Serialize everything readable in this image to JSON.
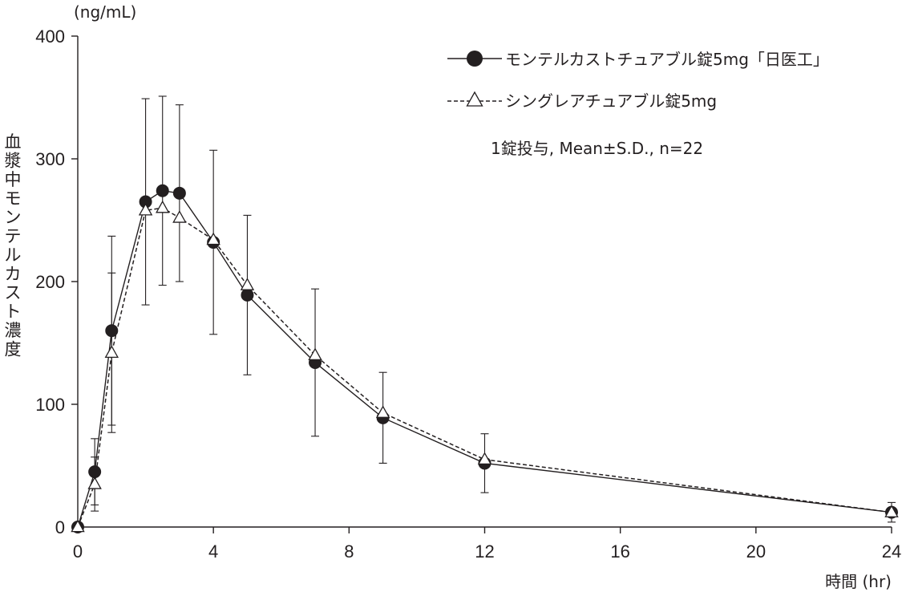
{
  "chart_data": {
    "type": "line",
    "y_unit": "(ng/mL)",
    "ylabel": "血漿中モンテルカスト濃度",
    "xlabel": "時間 (hr)",
    "xlim": [
      0,
      24
    ],
    "ylim": [
      0,
      400
    ],
    "x_ticks": [
      0,
      4,
      8,
      12,
      16,
      20,
      24
    ],
    "y_ticks": [
      0,
      100,
      200,
      300,
      400
    ],
    "annotation": "1錠投与, Mean±S.D., n=22",
    "legend_position": "top-right",
    "grid": false,
    "series": [
      {
        "name": "モンテルカストチュアブル錠5mg「日医工」",
        "marker": "filled-circle",
        "line_style": "solid",
        "x": [
          0,
          0.5,
          1,
          2,
          2.5,
          3,
          4,
          5,
          7,
          9,
          12,
          24
        ],
        "y": [
          0,
          45,
          160,
          265,
          274,
          272,
          232,
          189,
          134,
          89,
          52,
          12
        ],
        "error": [
          0,
          27,
          77,
          84,
          77,
          72,
          75,
          65,
          60,
          37,
          24,
          8
        ]
      },
      {
        "name": "シングレアチュアブル錠5mg",
        "marker": "open-triangle",
        "line_style": "dashed",
        "x": [
          0,
          0.5,
          1,
          2,
          2.5,
          3,
          4,
          5,
          7,
          9,
          12,
          24
        ],
        "y": [
          0,
          35,
          142,
          258,
          260,
          252,
          234,
          197,
          140,
          93,
          55,
          12
        ],
        "error": [
          0,
          22,
          65,
          0,
          0,
          0,
          0,
          0,
          0,
          0,
          0,
          0
        ]
      }
    ]
  },
  "colors": {
    "ink": "#231f20",
    "marker_fill_series1": "#231f20",
    "marker_fill_series2": "#ffffff"
  }
}
